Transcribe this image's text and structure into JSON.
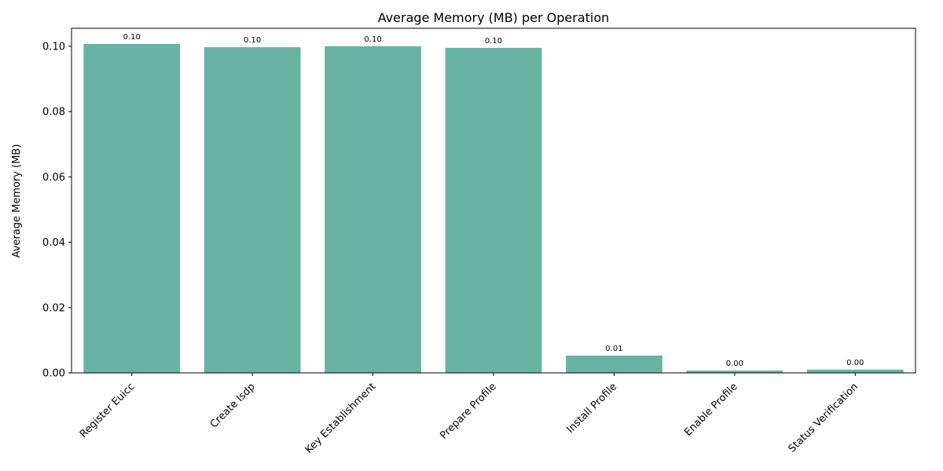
{
  "chart_data": {
    "type": "bar",
    "title": "Average Memory (MB) per Operation",
    "xlabel": "",
    "ylabel": "Average Memory (MB)",
    "categories": [
      "Register Euicc",
      "Create Isdp",
      "Key Establishment",
      "Prepare Profile",
      "Install Profile",
      "Enable Profile",
      "Status Verification"
    ],
    "values": [
      0.1007,
      0.0997,
      0.1,
      0.0995,
      0.0053,
      0.0007,
      0.001
    ],
    "value_labels": [
      "0.10",
      "0.10",
      "0.10",
      "0.10",
      "0.01",
      "0.00",
      "0.00"
    ],
    "ylim": [
      0,
      0.1055
    ],
    "yticks": [
      0.0,
      0.02,
      0.04,
      0.06,
      0.08,
      0.1
    ],
    "ytick_labels": [
      "0.00",
      "0.02",
      "0.04",
      "0.06",
      "0.08",
      "0.10"
    ],
    "grid": false,
    "bar_color": "#69b3a2"
  }
}
